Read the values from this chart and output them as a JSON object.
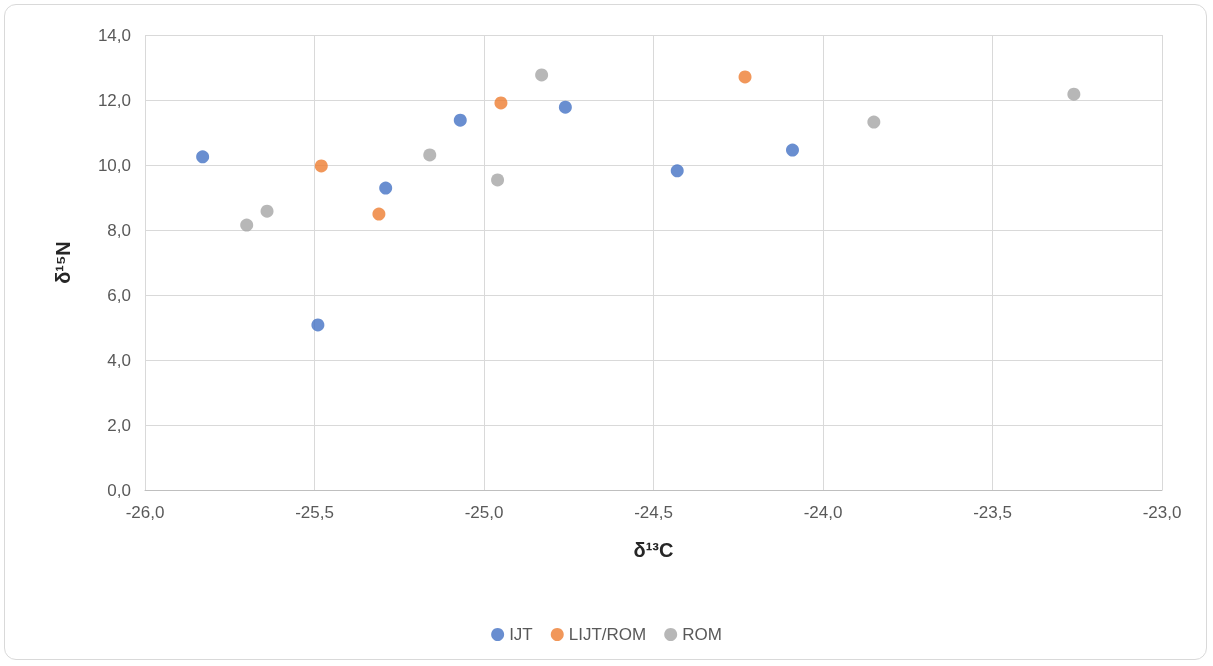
{
  "chart_data": {
    "type": "scatter",
    "xlabel": "δ¹³C",
    "ylabel": "δ¹⁵N",
    "series": [
      {
        "name": "IJT",
        "color": "#4472c4",
        "x": [
          -25.83,
          -25.49,
          -25.29,
          -25.07,
          -24.76,
          -24.43,
          -24.09
        ],
        "values": [
          10.25,
          5.08,
          9.29,
          11.38,
          11.78,
          9.82,
          10.46
        ]
      },
      {
        "name": "LIJT/ROM",
        "color": "#ed7d31",
        "x": [
          -25.48,
          -25.31,
          -24.95,
          -24.23
        ],
        "values": [
          9.97,
          8.49,
          11.91,
          12.71
        ]
      },
      {
        "name": "ROM",
        "color": "#a5a5a5",
        "x": [
          -25.7,
          -25.64,
          -25.16,
          -24.96,
          -24.83,
          -23.85,
          -23.26
        ],
        "values": [
          8.15,
          8.58,
          10.31,
          9.54,
          12.77,
          11.32,
          12.18
        ]
      }
    ],
    "xlim": [
      -26,
      -23
    ],
    "xticks": [
      {
        "value": -26,
        "label": "-26,0"
      },
      {
        "value": -25.5,
        "label": "-25,5"
      },
      {
        "value": -25,
        "label": "-25,0"
      },
      {
        "value": -24.5,
        "label": "-24,5"
      },
      {
        "value": -24,
        "label": "-24,0"
      },
      {
        "value": -23.5,
        "label": "-23,5"
      },
      {
        "value": -23,
        "label": "-23,0"
      }
    ],
    "ylim": [
      0,
      14
    ],
    "yticks": [
      {
        "value": 0,
        "label": "0,0"
      },
      {
        "value": 2,
        "label": "2,0"
      },
      {
        "value": 4,
        "label": "4,0"
      },
      {
        "value": 6,
        "label": "6,0"
      },
      {
        "value": 8,
        "label": "8,0"
      },
      {
        "value": 10,
        "label": "10,0"
      },
      {
        "value": 12,
        "label": "12,0"
      },
      {
        "value": 14,
        "label": "14,0"
      }
    ],
    "grid": true,
    "legend": "bottom",
    "marker": "circle"
  }
}
